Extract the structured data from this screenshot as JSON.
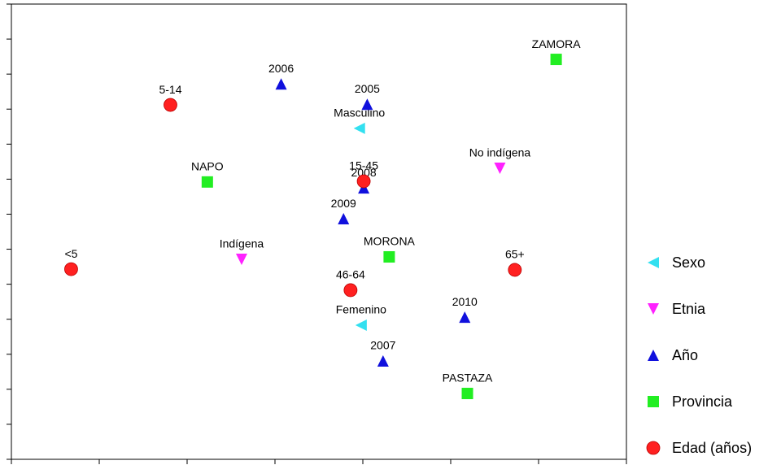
{
  "chart_data": {
    "type": "scatter",
    "xlim": [
      0,
      7
    ],
    "ylim": [
      0,
      13
    ],
    "xticks": [
      0,
      1,
      2,
      3,
      4,
      5,
      6,
      7
    ],
    "yticks": [
      0,
      1,
      2,
      3,
      4,
      5,
      6,
      7,
      8,
      9,
      10,
      11,
      12,
      13
    ],
    "legend": "right",
    "series": [
      {
        "name": "Sexo",
        "color": "#33e0f0",
        "marker": "triangle-left",
        "labels": [
          "Masculino",
          "Femenino"
        ],
        "x": [
          3.96,
          3.98
        ],
        "y": [
          9.45,
          3.83
        ]
      },
      {
        "name": "Etnia",
        "color": "#ff22ff",
        "marker": "triangle-down",
        "labels": [
          "No indígena",
          "Indígena"
        ],
        "x": [
          5.56,
          2.62
        ],
        "y": [
          8.31,
          5.71
        ]
      },
      {
        "name": "Año",
        "color": "#1010dd",
        "marker": "triangle-up",
        "labels": [
          "2006",
          "2005",
          "2008",
          "2009",
          "2010",
          "2007"
        ],
        "x": [
          3.07,
          4.05,
          4.01,
          3.78,
          5.16,
          4.23
        ],
        "y": [
          10.72,
          10.14,
          7.75,
          6.87,
          4.06,
          2.81
        ]
      },
      {
        "name": "Provincia",
        "color": "#22ee22",
        "marker": "square",
        "labels": [
          "ZAMORA",
          "NAPO",
          "MORONA",
          "PASTAZA"
        ],
        "x": [
          6.2,
          2.23,
          4.3,
          5.19
        ],
        "y": [
          11.42,
          7.92,
          5.78,
          1.88
        ]
      },
      {
        "name": "Edad (años)",
        "color": "#ff2020",
        "marker": "circle",
        "labels": [
          "5-14",
          "15-45",
          "<5",
          "46-64",
          "65+"
        ],
        "x": [
          1.81,
          4.01,
          0.68,
          3.86,
          5.73
        ],
        "y": [
          10.12,
          7.94,
          5.43,
          4.83,
          5.41
        ]
      }
    ]
  }
}
